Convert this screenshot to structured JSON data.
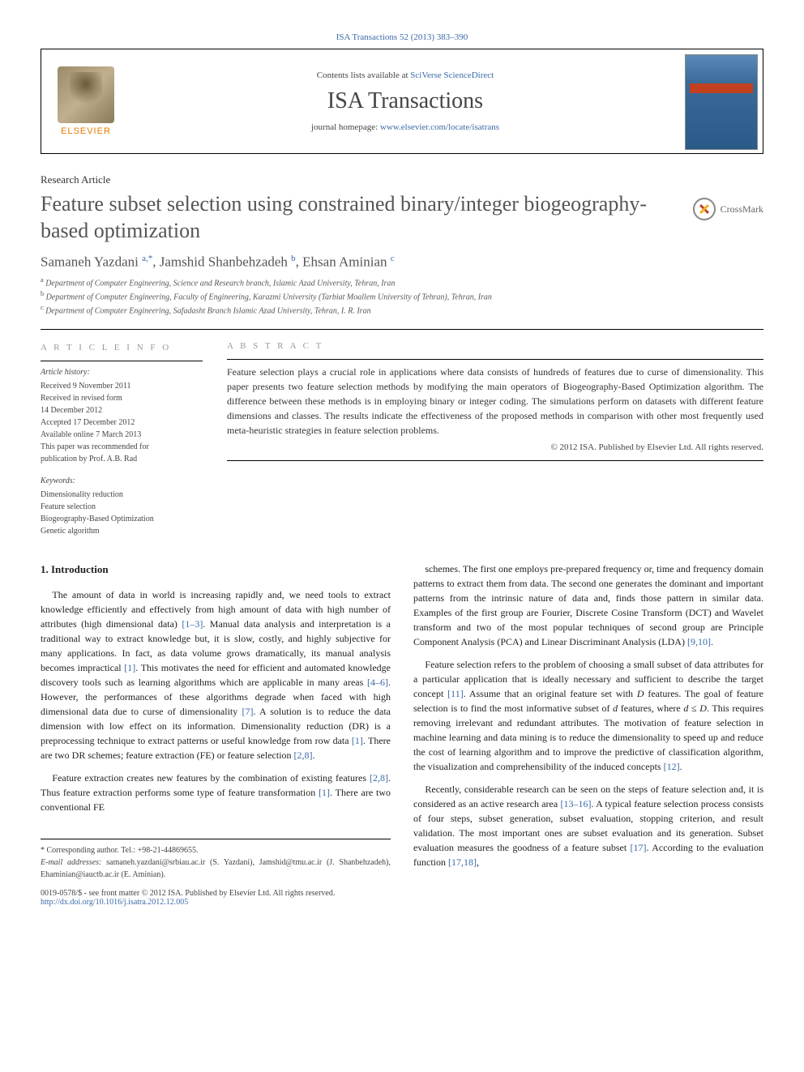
{
  "top_reference": "ISA Transactions 52 (2013) 383–390",
  "header": {
    "contents_prefix": "Contents lists available at ",
    "contents_link": "SciVerse ScienceDirect",
    "journal_title": "ISA Transactions",
    "homepage_prefix": "journal homepage: ",
    "homepage_url": "www.elsevier.com/locate/isatrans",
    "elsevier": "ELSEVIER"
  },
  "article_type": "Research Article",
  "title": "Feature subset selection using constrained binary/integer biogeography-based optimization",
  "crossmark": "CrossMark",
  "authors_html": "Samaneh Yazdani <sup>a,*</sup>, Jamshid Shanbehzadeh <sup>b</sup>, Ehsan Aminian <sup>c</sup>",
  "affiliations": [
    {
      "sup": "a",
      "text": "Department of Computer Engineering, Science and Research branch, Islamic Azad University, Tehran, Iran"
    },
    {
      "sup": "b",
      "text": "Department of Computer Engineering, Faculty of Engineering, Karazmi University (Tarbiat Moallem University of Tehran), Tehran, Iran"
    },
    {
      "sup": "c",
      "text": "Department of Computer Engineering, Safadasht Branch Islamic Azad University, Tehran, I. R. Iran"
    }
  ],
  "article_info": {
    "heading": "A R T I C L E   I N F O",
    "history_label": "Article history:",
    "history": [
      "Received 9 November 2011",
      "Received in revised form",
      "14 December 2012",
      "Accepted 17 December 2012",
      "Available online 7 March 2013",
      "This paper was recommended for",
      "publication by Prof. A.B. Rad"
    ],
    "keywords_label": "Keywords:",
    "keywords": [
      "Dimensionality reduction",
      "Feature selection",
      "Biogeography-Based Optimization",
      "Genetic algorithm"
    ]
  },
  "abstract": {
    "heading": "A B S T R A C T",
    "text": "Feature selection plays a crucial role in applications where data consists of hundreds of features due to curse of dimensionality. This paper presents two feature selection methods by modifying the main operators of Biogeography-Based Optimization algorithm. The difference between these methods is in employing binary or integer coding. The simulations perform on datasets with different feature dimensions and classes. The results indicate the effectiveness of the proposed methods in comparison with other most frequently used meta-heuristic strategies in feature selection problems.",
    "copyright": "© 2012 ISA. Published by Elsevier Ltd. All rights reserved."
  },
  "body": {
    "section_heading": "1.  Introduction",
    "left_paragraphs": [
      "The amount of data in world is increasing rapidly and, we need tools to extract knowledge efficiently and effectively from high amount of data with high number of attributes (high dimensional data) <span class=\"ref-link\">[1–3]</span>. Manual data analysis and interpretation is a traditional way to extract knowledge but, it is slow, costly, and highly subjective for many applications. In fact, as data volume grows dramatically, its manual analysis becomes impractical <span class=\"ref-link\">[1]</span>. This motivates the need for efficient and automated knowledge discovery tools such as learning algorithms which are applicable in many areas <span class=\"ref-link\">[4–6]</span>. However, the performances of these algorithms degrade when faced with high dimensional data due to curse of dimensionality <span class=\"ref-link\">[7]</span>. A solution is to reduce the data dimension with low effect on its information. Dimensionality reduction (DR) is a preprocessing technique to extract patterns or useful knowledge from row data <span class=\"ref-link\">[1]</span>. There are two DR schemes; feature extraction (FE) or feature selection <span class=\"ref-link\">[2,8]</span>.",
      "Feature extraction creates new features by the combination of existing features <span class=\"ref-link\">[2,8]</span>. Thus feature extraction performs some type of feature transformation <span class=\"ref-link\">[1]</span>. There are two conventional FE"
    ],
    "right_paragraphs": [
      "schemes. The first one employs pre-prepared frequency or, time and frequency domain patterns to extract them from data. The second one generates the dominant and important patterns from the intrinsic nature of data and, finds those pattern in similar data. Examples of the first group are Fourier, Discrete Cosine Transform (DCT) and Wavelet transform and two of the most popular techniques of second group are Principle Component Analysis (PCA) and Linear Discriminant Analysis (LDA) <span class=\"ref-link\">[9,10]</span>.",
      "Feature selection refers to the problem of choosing a small subset of data attributes for a particular application that is ideally necessary and sufficient to describe the target concept <span class=\"ref-link\">[11]</span>. Assume that an original feature set with <span class=\"italic\">D</span> features. The goal of feature selection is to find the most informative subset of <span class=\"italic\">d</span> features, where <span class=\"italic\">d</span> ≤ <span class=\"italic\">D</span>. This requires removing irrelevant and redundant attributes. The motivation of feature selection in machine learning and data mining is to reduce the dimensionality to speed up and reduce the cost of learning algorithm and to improve the predictive of classification algorithm, the visualization and comprehensibility of the induced concepts <span class=\"ref-link\">[12]</span>.",
      "Recently, considerable research can be seen on the steps of feature selection and, it is considered as an active research area <span class=\"ref-link\">[13–16]</span>. A typical feature selection process consists of four steps, subset generation, subset evaluation, stopping criterion, and result validation. The most important ones are subset evaluation and its generation. Subset evaluation measures the goodness of a feature subset <span class=\"ref-link\">[17]</span>. According to the evaluation function <span class=\"ref-link\">[17,18]</span>,"
    ]
  },
  "footnotes": {
    "corresponding": "* Corresponding author. Tel.: +98-21-44869655.",
    "emails_label": "E-mail addresses:",
    "emails": "samaneh.yazdani@srbiau.ac.ir (S. Yazdani), Jamshid@tmu.ac.ir (J. Shanbehzadeh), Ehaminian@iauctb.ac.ir (E. Aminian)."
  },
  "footer": {
    "line1": "0019-0578/$ - see front matter © 2012 ISA. Published by Elsevier Ltd. All rights reserved.",
    "doi": "http://dx.doi.org/10.1016/j.isatra.2012.12.005"
  },
  "colors": {
    "link": "#3a6aa8",
    "elsevier_orange": "#e67a00",
    "text": "#222222",
    "muted": "#555555"
  },
  "typography": {
    "body_fontsize": 12,
    "title_fontsize": 26,
    "journal_title_fontsize": 28,
    "affiliation_fontsize": 10
  }
}
